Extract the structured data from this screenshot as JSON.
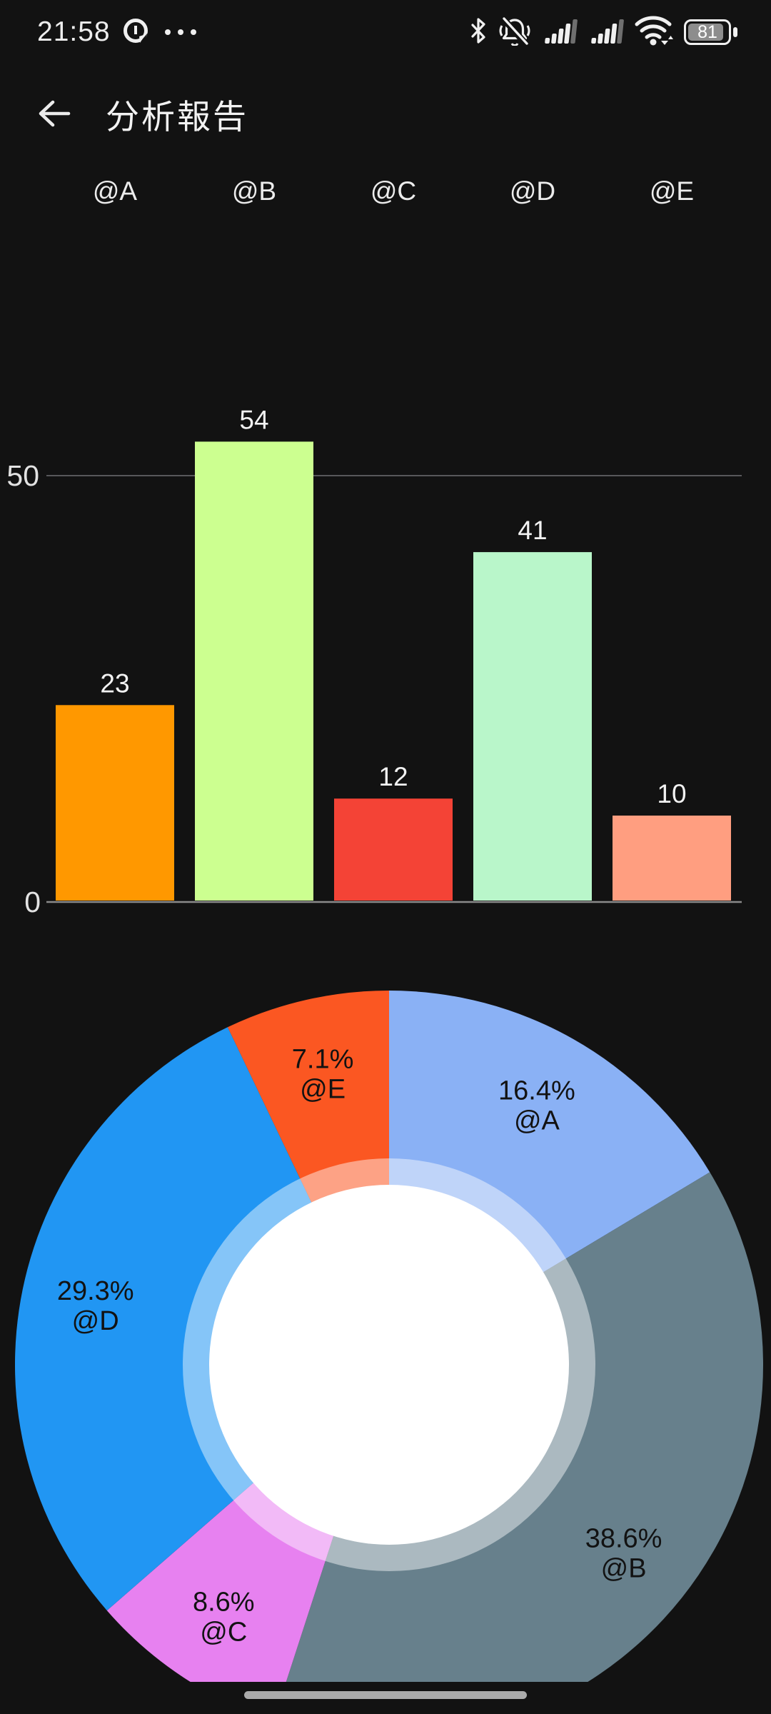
{
  "status_bar": {
    "time": "21:58",
    "battery": "81",
    "icons": [
      "app-notification-icon",
      "more-dots",
      "bluetooth-icon",
      "notifications-off-icon",
      "signal-sim1-icon",
      "signal-sim2-icon",
      "wifi-icon",
      "battery-icon"
    ]
  },
  "header": {
    "title": "分析報告"
  },
  "chart_data": [
    {
      "type": "bar",
      "title": "",
      "categories": [
        "@A",
        "@B",
        "@C",
        "@D",
        "@E"
      ],
      "values": [
        23,
        54,
        12,
        41,
        10
      ],
      "bar_colors": [
        "#FF9800",
        "#CCFF90",
        "#F44336",
        "#B9F6CA",
        "#FF9E80"
      ],
      "yticks": [
        0,
        50
      ],
      "ylim": [
        0,
        87
      ],
      "grid": "single horizontal gridline at 50",
      "value_label_color": "#F2F2F2",
      "axis_label_color": "#E2E2E2",
      "gridline_color": "#58585a",
      "baseline_color": "#8a8a8a"
    },
    {
      "type": "pie",
      "title": "",
      "labels": [
        "@A",
        "@B",
        "@C",
        "@D",
        "@E"
      ],
      "values": [
        16.4,
        38.6,
        8.6,
        29.3,
        7.1
      ],
      "unit": "%",
      "colors": [
        "#8AB1F5",
        "#67808C",
        "#E781F0",
        "#2196F3",
        "#FB5722"
      ],
      "start_angle": "top, clockwise",
      "hole_color": "#FFFFFF",
      "label_color": "#121212",
      "legend_position": "none"
    }
  ]
}
